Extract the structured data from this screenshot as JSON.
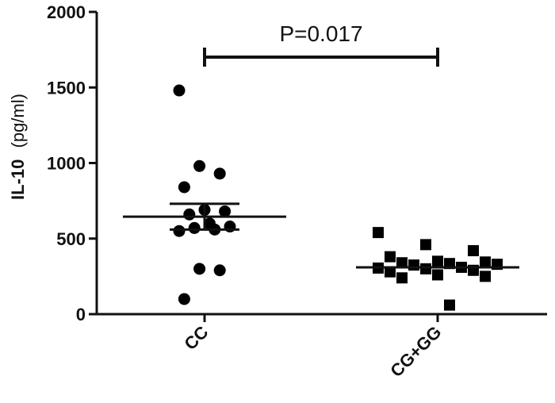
{
  "chart_data": {
    "type": "scatter",
    "ylabel": "IL-10",
    "yunit": "(pg/ml)",
    "ylim": [
      0,
      2000
    ],
    "yticks": [
      0,
      500,
      1000,
      1500,
      2000
    ],
    "categories": [
      "CC",
      "CG+GG"
    ],
    "series": [
      {
        "category": "CC",
        "marker": "circle",
        "values": [
          1480,
          980,
          930,
          840,
          690,
          680,
          660,
          600,
          580,
          570,
          560,
          550,
          300,
          290,
          100
        ],
        "mean": 645,
        "sem_range": [
          560,
          730
        ]
      },
      {
        "category": "CG+GG",
        "marker": "square",
        "values": [
          540,
          460,
          420,
          380,
          350,
          345,
          340,
          335,
          330,
          325,
          310,
          305,
          300,
          290,
          280,
          260,
          250,
          240,
          60
        ],
        "mean": 310
      }
    ],
    "annotation": {
      "text": "P=0.017",
      "between": [
        "CC",
        "CG+GG"
      ]
    },
    "grid": false,
    "legend": "none",
    "marker_color": "#000000"
  }
}
